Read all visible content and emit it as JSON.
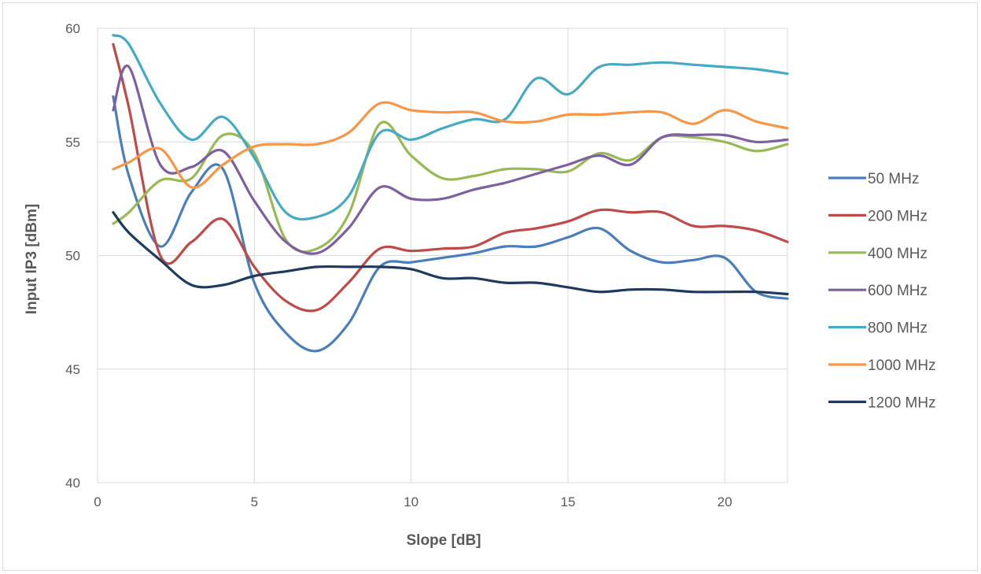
{
  "chart_data": {
    "type": "line",
    "title": "",
    "xlabel": "Slope [dB]",
    "ylabel": "Input IP3 [dBm]",
    "xlim": [
      0,
      22
    ],
    "ylim": [
      40,
      60
    ],
    "xticks": [
      "0",
      "5",
      "10",
      "15",
      "20"
    ],
    "yticks": [
      "40",
      "45",
      "50",
      "55",
      "60"
    ],
    "grid": "vertical and horizontal major gridlines",
    "legend_position": "right",
    "series": [
      {
        "name": "50 MHz",
        "color": "#4a7ebb",
        "x": [
          0.5,
          1,
          2,
          3,
          4,
          5,
          6,
          7,
          8,
          9,
          10,
          11,
          12,
          13,
          14,
          15,
          16,
          17,
          18,
          19,
          20,
          21,
          22
        ],
        "y": [
          57.0,
          53.5,
          50.4,
          52.8,
          53.8,
          48.8,
          46.6,
          45.8,
          47.0,
          49.5,
          49.7,
          49.9,
          50.1,
          50.4,
          50.4,
          50.8,
          51.2,
          50.2,
          49.7,
          49.8,
          49.9,
          48.4,
          48.1
        ]
      },
      {
        "name": "200 MHz",
        "color": "#be4b48",
        "x": [
          0.5,
          1,
          2,
          3,
          4,
          5,
          6,
          7,
          8,
          9,
          10,
          11,
          12,
          13,
          14,
          15,
          16,
          17,
          18,
          19,
          20,
          21,
          22
        ],
        "y": [
          59.3,
          56.5,
          50.0,
          50.6,
          51.6,
          49.5,
          48.0,
          47.6,
          48.8,
          50.3,
          50.2,
          50.3,
          50.4,
          51.0,
          51.2,
          51.5,
          52.0,
          51.9,
          51.9,
          51.3,
          51.3,
          51.1,
          50.6
        ]
      },
      {
        "name": "400 MHz",
        "color": "#98b954",
        "x": [
          0.5,
          1,
          2,
          3,
          4,
          5,
          6,
          7,
          8,
          9,
          10,
          11,
          12,
          13,
          14,
          15,
          16,
          17,
          18,
          19,
          20,
          21,
          22
        ],
        "y": [
          51.4,
          51.9,
          53.3,
          53.4,
          55.3,
          54.5,
          50.7,
          50.3,
          51.8,
          55.8,
          54.4,
          53.4,
          53.5,
          53.8,
          53.8,
          53.7,
          54.5,
          54.2,
          55.2,
          55.2,
          55.0,
          54.6,
          54.9
        ]
      },
      {
        "name": "600 MHz",
        "color": "#7d60a0",
        "x": [
          0.5,
          1,
          2,
          3,
          4,
          5,
          6,
          7,
          8,
          9,
          10,
          11,
          12,
          13,
          14,
          15,
          16,
          17,
          18,
          19,
          20,
          21,
          22
        ],
        "y": [
          56.4,
          58.3,
          54.0,
          53.9,
          54.6,
          52.4,
          50.6,
          50.1,
          51.2,
          53.0,
          52.5,
          52.5,
          52.9,
          53.2,
          53.6,
          54.0,
          54.4,
          54.0,
          55.2,
          55.3,
          55.3,
          55.0,
          55.1
        ]
      },
      {
        "name": "800 MHz",
        "color": "#46aac5",
        "x": [
          0.5,
          1,
          2,
          3,
          4,
          5,
          6,
          7,
          8,
          9,
          10,
          11,
          12,
          13,
          14,
          15,
          16,
          17,
          18,
          19,
          20,
          21,
          22
        ],
        "y": [
          59.7,
          59.3,
          56.7,
          55.1,
          56.1,
          54.3,
          51.9,
          51.7,
          52.6,
          55.4,
          55.1,
          55.6,
          56.0,
          56.0,
          57.8,
          57.1,
          58.3,
          58.4,
          58.5,
          58.4,
          58.3,
          58.2,
          58.0
        ]
      },
      {
        "name": "1000 MHz",
        "color": "#f79646",
        "x": [
          0.5,
          1,
          2,
          3,
          4,
          5,
          6,
          7,
          8,
          9,
          10,
          11,
          12,
          13,
          14,
          15,
          16,
          17,
          18,
          19,
          20,
          21,
          22
        ],
        "y": [
          53.8,
          54.1,
          54.7,
          53.0,
          54.0,
          54.8,
          54.9,
          54.9,
          55.4,
          56.7,
          56.4,
          56.3,
          56.3,
          55.9,
          55.9,
          56.2,
          56.2,
          56.3,
          56.3,
          55.8,
          56.4,
          55.9,
          55.6
        ]
      },
      {
        "name": "1200 MHz",
        "color": "#1f3a5f",
        "x": [
          0.5,
          1,
          2,
          3,
          4,
          5,
          6,
          7,
          8,
          9,
          10,
          11,
          12,
          13,
          14,
          15,
          16,
          17,
          18,
          19,
          20,
          21,
          22
        ],
        "y": [
          51.9,
          51.0,
          49.8,
          48.7,
          48.7,
          49.1,
          49.3,
          49.5,
          49.5,
          49.5,
          49.4,
          49.0,
          49.0,
          48.8,
          48.8,
          48.6,
          48.4,
          48.5,
          48.5,
          48.4,
          48.4,
          48.4,
          48.3
        ]
      }
    ]
  }
}
